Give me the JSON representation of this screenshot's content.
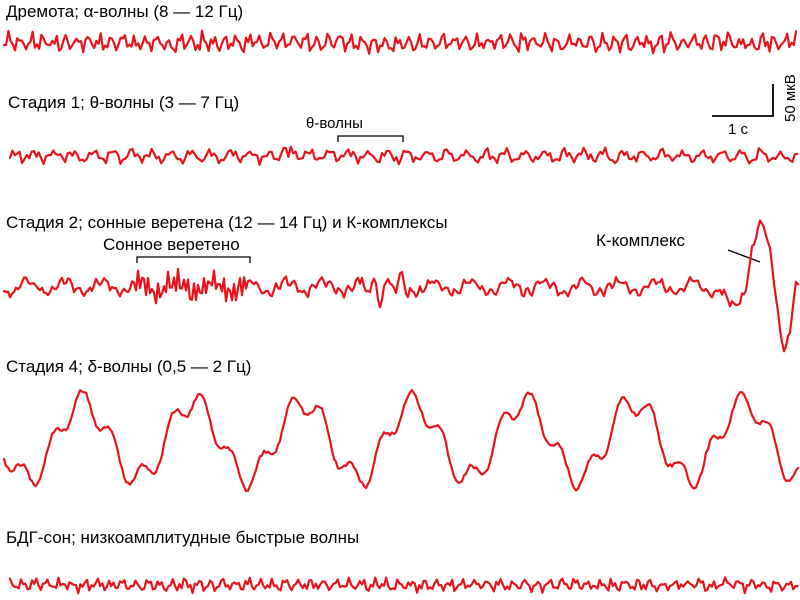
{
  "stages": [
    {
      "id": "drowsy",
      "label": "Дремота; α-волны (8 — 12 Гц)"
    },
    {
      "id": "stage1",
      "label": "Стадия 1; θ-волны (3 — 7 Гц)"
    },
    {
      "id": "stage2",
      "label": "Стадия 2; сонные веретена (12 — 14 Гц) и К-комплексы"
    },
    {
      "id": "stage4",
      "label": "Стадия 4; δ-волны (0,5 — 2 Гц)"
    },
    {
      "id": "rem",
      "label": "БДГ-сон; низкоамплитудные быстрые волны"
    }
  ],
  "annotations": {
    "theta": "θ-волны",
    "spindle": "Сонное веретено",
    "k_complex": "К-комплекс"
  },
  "scale_bar": {
    "time": "1 с",
    "amplitude": "50 мкВ"
  },
  "colors": {
    "trace": "#e8141b",
    "text": "#000000",
    "background": "#ffffff"
  }
}
